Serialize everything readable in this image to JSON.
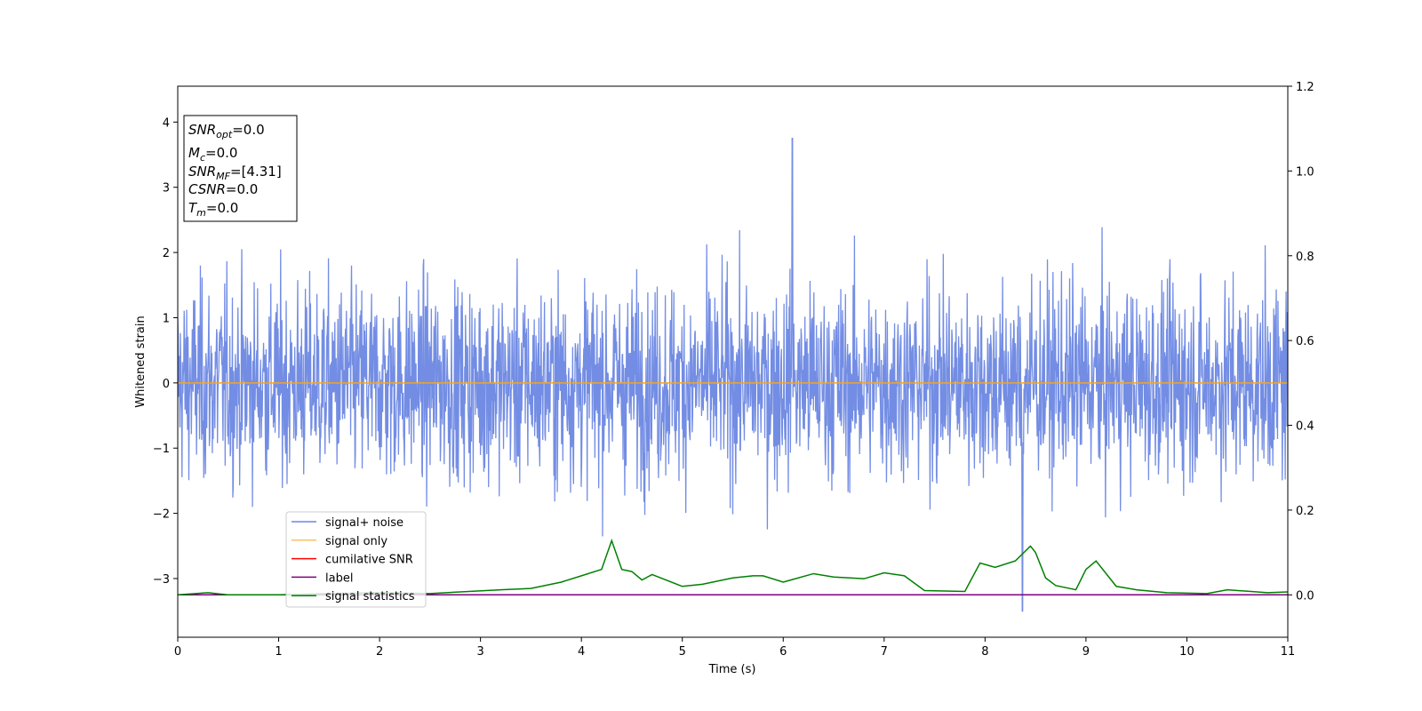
{
  "chart_data": {
    "type": "line",
    "xlabel": "Time (s)",
    "ylabel": "Whitened strain",
    "xlim": [
      0,
      11
    ],
    "ylim": [
      -3.9,
      4.55
    ],
    "y2lim": [
      -0.1,
      1.2
    ],
    "x_ticks": [
      "0",
      "1",
      "2",
      "3",
      "4",
      "5",
      "6",
      "7",
      "8",
      "9",
      "10",
      "11"
    ],
    "y_ticks": [
      "4",
      "3",
      "2",
      "1",
      "0",
      "−1",
      "−2",
      "−3"
    ],
    "y2_ticks": [
      "1.2",
      "1.0",
      "0.8",
      "0.6",
      "0.4",
      "0.2",
      "0.0"
    ],
    "grid": false,
    "legend_position": "lower-left",
    "series": [
      {
        "name": "signal+ noise",
        "axis": "left",
        "color": "#6b87e3",
        "description_kind": "dense noise",
        "envelope": {
          "typical_min": -1.9,
          "typical_max": 2.0,
          "max": 3.75,
          "max_x": 6.09,
          "min": -3.5,
          "min_x": 8.37
        }
      },
      {
        "name": "signal only",
        "axis": "left",
        "color": "#f5a623",
        "x": [
          0,
          11
        ],
        "y": [
          0,
          0
        ]
      },
      {
        "name": "cumilative SNR",
        "axis": "right",
        "color": "#ff0000",
        "x": [
          0,
          11
        ],
        "y": [
          0,
          0
        ]
      },
      {
        "name": "label",
        "axis": "right",
        "color": "#800080",
        "x": [
          0,
          11
        ],
        "y": [
          0,
          0
        ]
      },
      {
        "name": "signal statistics",
        "axis": "right",
        "color": "#008000",
        "x": [
          0,
          0.3,
          0.5,
          1.0,
          1.5,
          2.0,
          2.5,
          2.8,
          3.2,
          3.5,
          3.8,
          4.0,
          4.2,
          4.3,
          4.4,
          4.5,
          4.6,
          4.7,
          5.0,
          5.2,
          5.5,
          5.7,
          5.8,
          6.0,
          6.3,
          6.5,
          6.8,
          7.0,
          7.2,
          7.4,
          7.8,
          7.95,
          8.1,
          8.3,
          8.45,
          8.5,
          8.6,
          8.7,
          8.9,
          9.0,
          9.1,
          9.3,
          9.5,
          9.8,
          10.2,
          10.4,
          10.8,
          11.0
        ],
        "y": [
          0.0,
          0.005,
          0.0,
          0.0,
          0.003,
          0.005,
          0.003,
          0.007,
          0.012,
          0.015,
          0.03,
          0.045,
          0.06,
          0.128,
          0.06,
          0.055,
          0.035,
          0.048,
          0.02,
          0.025,
          0.04,
          0.045,
          0.045,
          0.03,
          0.05,
          0.042,
          0.038,
          0.052,
          0.045,
          0.01,
          0.008,
          0.075,
          0.065,
          0.08,
          0.115,
          0.1,
          0.04,
          0.022,
          0.012,
          0.06,
          0.08,
          0.02,
          0.012,
          0.005,
          0.003,
          0.012,
          0.005,
          0.007
        ]
      }
    ],
    "info_box": {
      "lines": [
        {
          "main": "SNR",
          "sub": "opt",
          "value": "=0.0"
        },
        {
          "main": "M",
          "sub": "c",
          "value": "=0.0"
        },
        {
          "main": "SNR",
          "sub": "MF",
          "value": "=[4.31]"
        },
        {
          "main": "CSNR",
          "sub": "",
          "value": "=0.0"
        },
        {
          "main": "T",
          "sub": "m",
          "value": "=0.0"
        }
      ]
    }
  }
}
